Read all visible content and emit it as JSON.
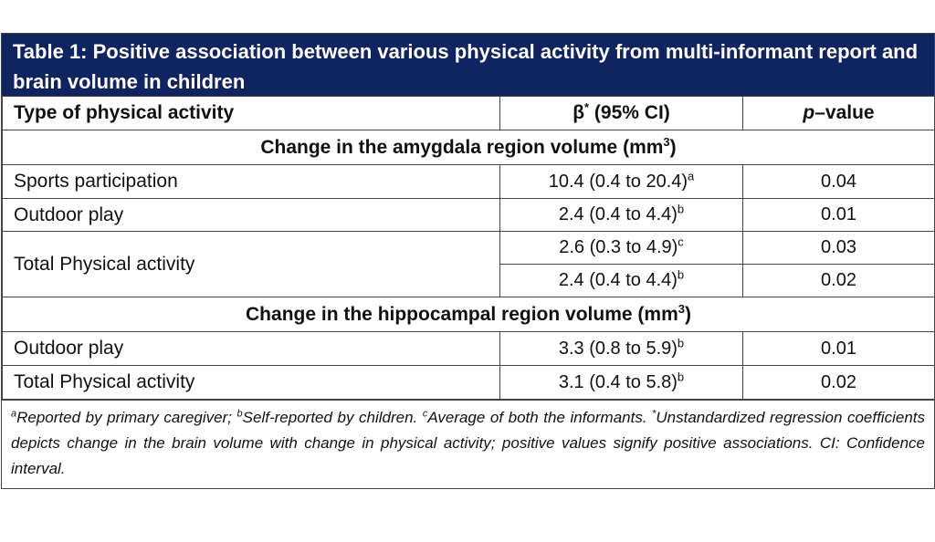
{
  "title": "Table 1: Positive association between various physical activity from multi-informant report and brain volume in children",
  "header": {
    "col1": "Type of physical activity",
    "col2_main": "β",
    "col2_sup": "*",
    "col2_tail": " (95% CI)",
    "col3_italic": "p",
    "col3_tail": "–value"
  },
  "sections": [
    {
      "heading_text": "Change in the amygdala region volume (mm",
      "heading_sup": "3",
      "heading_tail": ")",
      "rows": [
        {
          "type": "Sports participation",
          "beta": "10.4 (0.4 to 20.4)",
          "beta_sup": "a",
          "p": "0.04"
        },
        {
          "type": "Outdoor play",
          "beta": "2.4 (0.4 to 4.4)",
          "beta_sup": "b",
          "p": "0.01"
        },
        {
          "type": "Total Physical activity",
          "beta": "2.6 (0.3 to 4.9)",
          "beta_sup": "c",
          "p": "0.03"
        },
        {
          "type": "",
          "beta": "2.4 (0.4 to 4.4)",
          "beta_sup": "b",
          "p": "0.02"
        }
      ]
    },
    {
      "heading_text": "Change in the hippocampal region volume (mm",
      "heading_sup": "3",
      "heading_tail": ")",
      "rows": [
        {
          "type": "Outdoor play",
          "beta": "3.3 (0.8 to 5.9)",
          "beta_sup": "b",
          "p": "0.01"
        },
        {
          "type": "Total Physical activity",
          "beta": "3.1 (0.4 to 5.8)",
          "beta_sup": "b",
          "p": "0.02"
        }
      ]
    }
  ],
  "footnote": {
    "a_sup": "a",
    "a_text": "Reported by primary caregiver; ",
    "b_sup": "b",
    "b_text": "Self-reported by children. ",
    "c_sup": "c",
    "c_text": "Average of both the informants. ",
    "star_sup": "*",
    "star_text": "Unstandardized regression coefficients depicts change in the brain volume with change in physical activity; positive values signify positive associations. CI: Confidence interval."
  },
  "colors": {
    "title_bg": "#0f2461",
    "title_fg": "#ffffff",
    "border": "#444444"
  }
}
